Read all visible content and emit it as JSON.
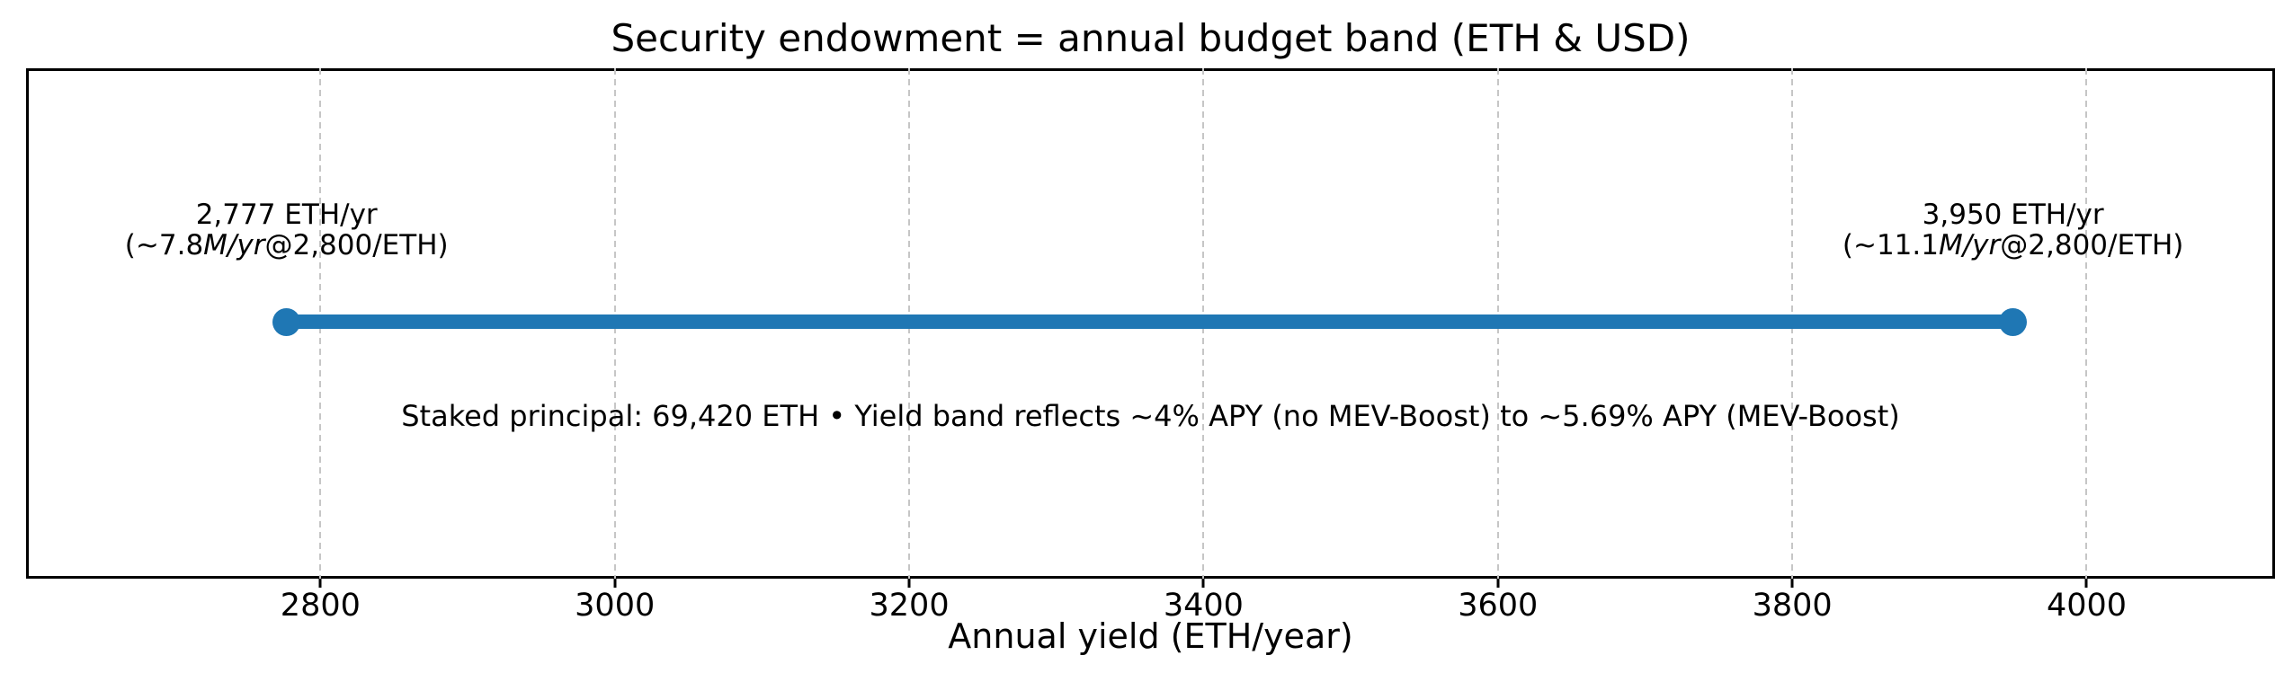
{
  "chart_data": {
    "type": "line",
    "subtype": "horizontal-range-band",
    "title": "Security endowment = annual budget band (ETH & USD)",
    "xlabel": "Annual yield (ETH/year)",
    "xlim": [
      2600,
      4128
    ],
    "x_ticks": [
      2800,
      3000,
      3200,
      3400,
      3600,
      3800,
      4000
    ],
    "grid": true,
    "grid_style": "dashed-vertical",
    "legend": false,
    "band": {
      "min_eth_per_year": 2777,
      "max_eth_per_year": 3950
    },
    "annotation": "Staked principal: 69,420 ETH • Yield band reflects ~4% APY (no MEV-Boost) to ~5.69% APY (MEV-Boost)"
  },
  "labels": {
    "min": {
      "line1": "2,777 ETH/yr",
      "line2_pre": "(~7.8",
      "line2_italic": "M/yr",
      "line2_post": "@2,800/ETH)"
    },
    "max": {
      "line1": "3,950 ETH/yr",
      "line2_pre": "(~11.1",
      "line2_italic": "M/yr",
      "line2_post": "@2,800/ETH)"
    }
  },
  "colors": {
    "band": "#1f77b4",
    "grid": "#c6c6c6",
    "spine": "#000000",
    "text": "#000000"
  }
}
